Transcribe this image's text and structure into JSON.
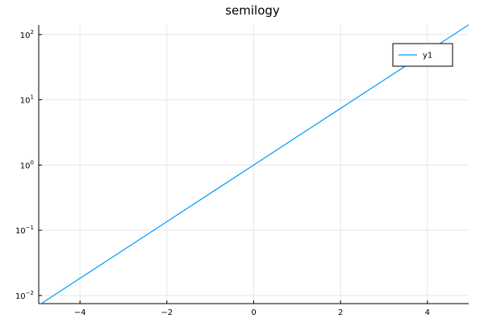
{
  "chart_data": {
    "type": "line",
    "title": "semilogy",
    "xlabel": "",
    "ylabel": "",
    "xscale": "linear",
    "yscale": "log",
    "xlim": [
      -4.95,
      4.95
    ],
    "ylim": [
      0.0075,
      140
    ],
    "grid": true,
    "legend_position": "top-right",
    "x_ticks": [
      {
        "value": -4,
        "label": "−4"
      },
      {
        "value": -2,
        "label": "−2"
      },
      {
        "value": 0,
        "label": "0"
      },
      {
        "value": 2,
        "label": "2"
      },
      {
        "value": 4,
        "label": "4"
      }
    ],
    "y_ticks": [
      {
        "value": 0.01,
        "base": "10",
        "exp": "−2"
      },
      {
        "value": 0.1,
        "base": "10",
        "exp": "−1"
      },
      {
        "value": 1,
        "base": "10",
        "exp": "0"
      },
      {
        "value": 10,
        "base": "10",
        "exp": "1"
      },
      {
        "value": 100,
        "base": "10",
        "exp": "2"
      }
    ],
    "series": [
      {
        "name": "y1",
        "color": "#009af9",
        "x": [
          -5,
          -4,
          -3,
          -2,
          -1,
          0,
          1,
          2,
          3,
          4,
          5
        ],
        "y": [
          0.006738,
          0.018316,
          0.049787,
          0.135335,
          0.367879,
          1,
          2.718282,
          7.389056,
          20.085537,
          54.59815,
          148.413159
        ]
      }
    ]
  },
  "colors": {
    "grid": "#e6e6e6",
    "axis": "#000000",
    "series": "#009af9"
  }
}
